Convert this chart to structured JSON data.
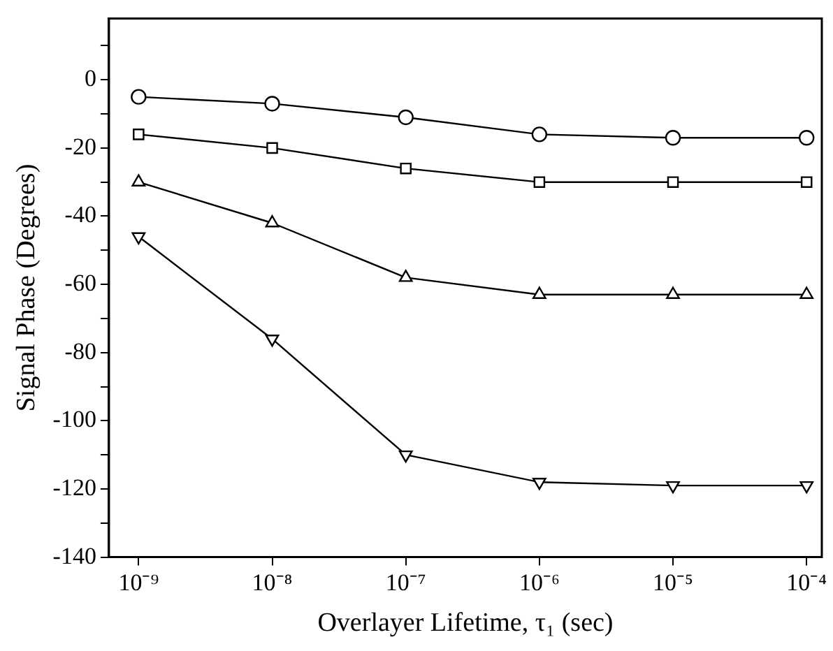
{
  "chart_data": {
    "type": "line",
    "xlabel": "Overlayer Lifetime, τ₁ (sec)",
    "ylabel": "Signal Phase (Degrees)",
    "log": "x",
    "grid": false,
    "legend": false,
    "line_style": "solid",
    "x": [
      1e-09,
      1e-08,
      1e-07,
      1e-06,
      1e-05,
      0.0001
    ],
    "xlim": [
      6e-10,
      0.00013
    ],
    "xticks": [
      {
        "value": 1e-09,
        "label": "10⁻⁹"
      },
      {
        "value": 1e-08,
        "label": "10⁻⁸"
      },
      {
        "value": 1e-07,
        "label": "10⁻⁷"
      },
      {
        "value": 1e-06,
        "label": "10⁻⁶"
      },
      {
        "value": 1e-05,
        "label": "10⁻⁵"
      },
      {
        "value": 0.0001,
        "label": "10⁻⁴"
      }
    ],
    "ylim": [
      -140,
      18
    ],
    "yticks": [
      -140,
      {
        "value": -130,
        "label": null
      },
      -120,
      {
        "value": -110,
        "label": null
      },
      -100,
      {
        "value": -90,
        "label": null
      },
      -80,
      {
        "value": -70,
        "label": null
      },
      -60,
      {
        "value": -50,
        "label": null
      },
      -40,
      {
        "value": -30,
        "label": null
      },
      -20,
      {
        "value": -10,
        "label": null
      },
      0,
      {
        "value": 10,
        "label": null
      }
    ],
    "series": [
      {
        "color": "#000000",
        "marker": "circle",
        "values": [
          -5,
          -7,
          -11,
          -16,
          -17,
          -17
        ]
      },
      {
        "color": "#000000",
        "marker": "square",
        "values": [
          -16,
          -20,
          -26,
          -30,
          -30,
          -30
        ]
      },
      {
        "color": "#000000",
        "marker": "triangle",
        "values": [
          -30,
          -42,
          -58,
          -63,
          -63,
          -63
        ]
      },
      {
        "color": "#000000",
        "marker": "triangle-down",
        "values": [
          -46,
          -76,
          -110,
          -118,
          -119,
          -119
        ]
      }
    ]
  }
}
